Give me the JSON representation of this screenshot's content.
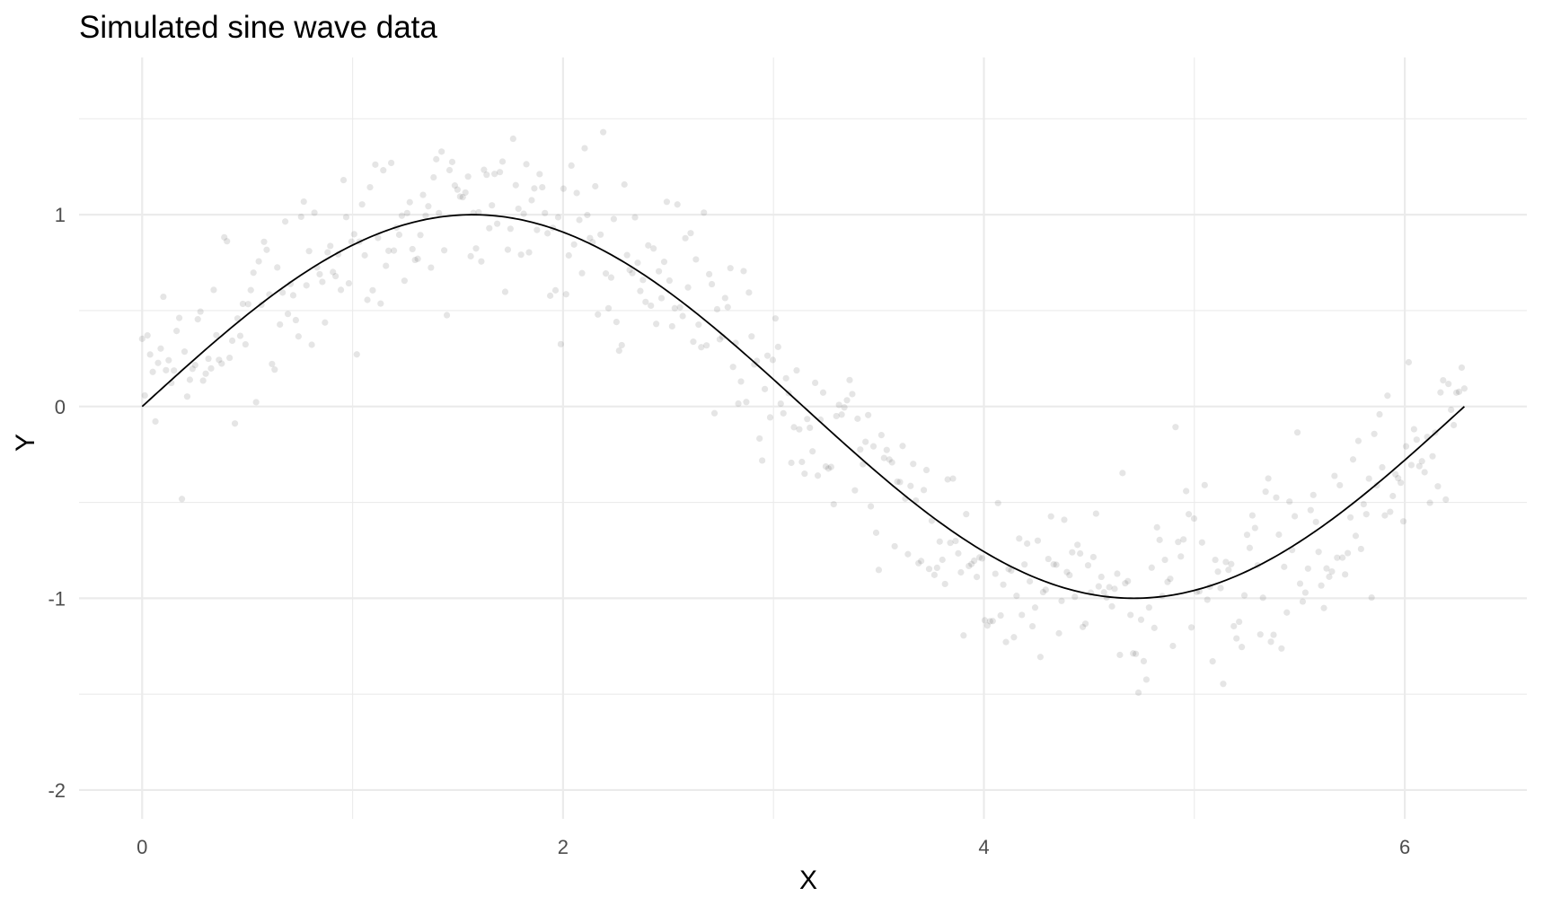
{
  "chart_data": {
    "type": "scatter",
    "title": "Simulated sine wave data",
    "xlabel": "X",
    "ylabel": "Y",
    "xlim": [
      -0.3,
      6.58
    ],
    "ylim": [
      -2.15,
      1.82
    ],
    "xticks": [
      0,
      2,
      4,
      6
    ],
    "yticks": [
      -2,
      -1,
      0,
      1
    ],
    "xtick_labels": [
      "0",
      "2",
      "4",
      "6"
    ],
    "ytick_labels": [
      "-2",
      "-1",
      "0",
      "1"
    ],
    "grid": true,
    "legend": "none",
    "series": [
      {
        "kind": "points",
        "color": "#000000",
        "opacity": 0.1,
        "noise_sd": 0.25,
        "x_range": [
          0,
          6.283
        ],
        "count": 500,
        "seed": 42
      },
      {
        "kind": "line",
        "color": "#000000",
        "function": "sin(x)",
        "x_range": [
          0,
          6.283
        ]
      }
    ]
  }
}
